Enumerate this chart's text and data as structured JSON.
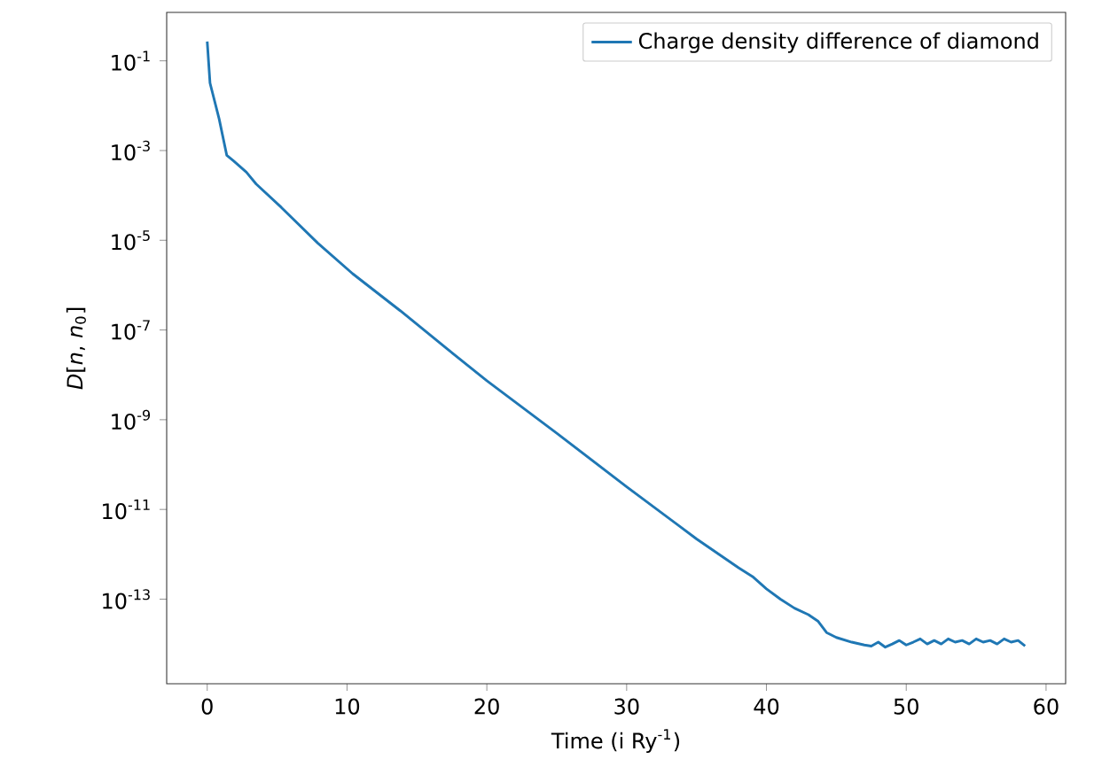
{
  "chart_data": {
    "type": "line",
    "xlabel": "Time (i Ry$^{-1}$)",
    "ylabel": "*D*[*n*, *n*$_{0}$]",
    "log": true,
    "legend": "top right",
    "xlim": [
      -2.9,
      61.4
    ],
    "ylim": [
      1.3e-15,
      1.2
    ],
    "xticks": [
      0,
      10,
      20,
      30,
      40,
      50,
      60
    ],
    "yticks": [
      {
        "value": 0.1,
        "label": "10$^{-1}$"
      },
      {
        "value": 0.001,
        "label": "10$^{-3}$"
      },
      {
        "value": 1e-05,
        "label": "10$^{-5}$"
      },
      {
        "value": 1e-07,
        "label": "10$^{-7}$"
      },
      {
        "value": 1e-09,
        "label": "10$^{-9}$"
      },
      {
        "value": 1e-11,
        "label": "10$^{-11}$"
      },
      {
        "value": 1e-13,
        "label": "10$^{-13}$"
      }
    ],
    "x": [
      0,
      0.2,
      0.85,
      1.4,
      1.9,
      2.8,
      3.5,
      5.3,
      7.9,
      10.4,
      13.8,
      17.2,
      20,
      25,
      30,
      35,
      38,
      39,
      40,
      41,
      42,
      43,
      43.7,
      44.3,
      45,
      46.1,
      47,
      47.5,
      48,
      48.5,
      49,
      49.5,
      50,
      50.5,
      51,
      51.5,
      52,
      52.5,
      53,
      53.5,
      54,
      54.5,
      55,
      55.5,
      56,
      56.5,
      57,
      57.5,
      58,
      58.5
    ],
    "series": [
      {
        "name": "Charge density difference of diamond",
        "color": "#1f77b4",
        "values": [
          0.27,
          0.032,
          0.0051,
          0.00078,
          0.00058,
          0.00033,
          0.00018,
          5.4e-05,
          8.7e-06,
          1.8e-06,
          2.7e-07,
          3.7e-08,
          7.4e-09,
          5e-10,
          3.2e-11,
          2.2e-12,
          5e-13,
          3.2e-13,
          1.7e-13,
          1e-13,
          6.3e-14,
          4.5e-14,
          3.2e-14,
          1.8e-14,
          1.4e-14,
          1.1e-14,
          9.5e-15,
          9e-15,
          1.1e-14,
          8.5e-15,
          1e-14,
          1.2e-14,
          9.5e-15,
          1.1e-14,
          1.3e-14,
          1e-14,
          1.2e-14,
          1e-14,
          1.3e-14,
          1.1e-14,
          1.2e-14,
          1e-14,
          1.3e-14,
          1.1e-14,
          1.2e-14,
          1e-14,
          1.3e-14,
          1.1e-14,
          1.2e-14,
          9e-15
        ]
      }
    ]
  }
}
